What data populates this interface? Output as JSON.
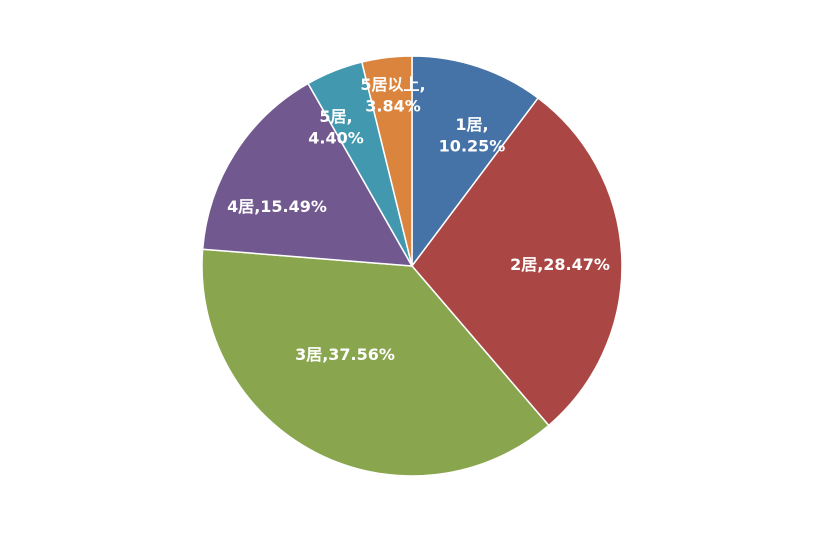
{
  "chart_data": {
    "type": "pie",
    "title": "",
    "start_angle_deg": 0,
    "direction": "clockwise",
    "legend": "none",
    "slices": [
      {
        "category": "1居",
        "value": 10.25,
        "label": "10.25%",
        "color": "#4572a7"
      },
      {
        "category": "2居",
        "value": 28.47,
        "label": "28.47%",
        "color": "#aa4643"
      },
      {
        "category": "3居",
        "value": 37.56,
        "label": "37.56%",
        "color": "#89a54e"
      },
      {
        "category": "4居",
        "value": 15.49,
        "label": "15.49%",
        "color": "#71588f"
      },
      {
        "category": "5居",
        "value": 4.4,
        "label": "4.40%",
        "color": "#4198af"
      },
      {
        "category": "5居以上",
        "value": 3.84,
        "label": "3.84%",
        "color": "#db843d"
      }
    ]
  }
}
